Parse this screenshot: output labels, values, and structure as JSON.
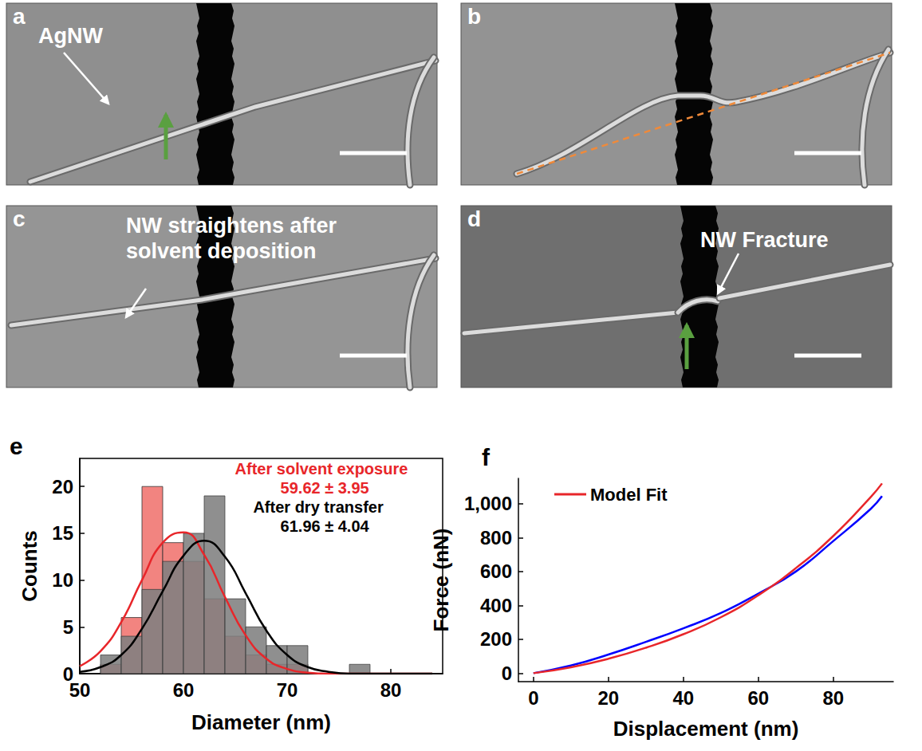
{
  "panels": [
    {
      "letter": "a",
      "label": "AgNW"
    },
    {
      "letter": "b"
    },
    {
      "letter": "c",
      "label": "NW straightens after solvent deposition"
    },
    {
      "letter": "d",
      "label": "NW Fracture"
    },
    {
      "letter": "e"
    },
    {
      "letter": "f"
    }
  ],
  "chart_data": [
    {
      "type": "histogram",
      "xlabel": "Diameter (nm)",
      "ylabel": "Counts",
      "xlim": [
        50,
        85
      ],
      "xticks": [
        50,
        60,
        70,
        80
      ],
      "ylim": [
        0,
        23
      ],
      "yticks": [
        0,
        5,
        10,
        15,
        20
      ],
      "grid": false,
      "bins": [
        52,
        54,
        56,
        58,
        60,
        62,
        64,
        66,
        68,
        70,
        72,
        74,
        76,
        78,
        80
      ],
      "annotations": [
        {
          "text": "After solvent exposure",
          "color": "#e8262a"
        },
        {
          "text": "59.62 ± 3.95",
          "color": "#e8262a"
        },
        {
          "text": "After dry transfer",
          "color": "#000000"
        },
        {
          "text": "61.96 ± 4.04",
          "color": "#000000"
        }
      ],
      "series": [
        {
          "type": "bar",
          "color": "#f28480",
          "values": [
            1,
            6,
            20,
            14,
            12,
            8,
            4,
            2,
            1,
            1,
            0,
            0,
            0,
            0
          ]
        },
        {
          "type": "bar",
          "color": "#7f7f7f",
          "values": [
            2,
            4,
            9,
            12,
            15,
            19,
            8,
            5,
            3,
            3,
            0,
            0,
            1,
            0
          ]
        },
        {
          "type": "line",
          "color": "#e8262a",
          "x": [
            50,
            52,
            54,
            56,
            58,
            60,
            62,
            64,
            66,
            68,
            70,
            72,
            74,
            76,
            78,
            80,
            82,
            84
          ],
          "values": [
            0.8,
            2.4,
            5.5,
            10.0,
            14.0,
            15.1,
            12.7,
            8.2,
            4.1,
            1.6,
            0.5,
            0.1,
            0.0,
            0.0,
            0.0,
            0.0,
            0.0,
            0.0
          ]
        },
        {
          "type": "line",
          "color": "#000000",
          "x": [
            50,
            52,
            54,
            56,
            58,
            60,
            62,
            64,
            66,
            68,
            70,
            72,
            74,
            76,
            78,
            80,
            82,
            84
          ],
          "values": [
            0.2,
            0.7,
            2.0,
            4.8,
            8.8,
            12.6,
            14.2,
            12.5,
            8.6,
            4.6,
            2.0,
            0.7,
            0.2,
            0.0,
            0.0,
            0.0,
            0.0,
            0.0
          ]
        }
      ]
    },
    {
      "type": "line",
      "xlabel": "Displacement (nm)",
      "ylabel": "Force (nN)",
      "xlim": [
        -4,
        96
      ],
      "xticks": [
        0,
        20,
        40,
        60,
        80
      ],
      "ylim": [
        -50,
        1150
      ],
      "yticks": [
        0,
        200,
        400,
        600,
        800,
        1000
      ],
      "grid": false,
      "legend": "upper left",
      "series": [
        {
          "color": "#0000ff",
          "x": [
            0,
            10,
            20,
            30,
            40,
            50,
            60,
            70,
            80,
            90,
            93
          ],
          "values": [
            0,
            45,
            110,
            185,
            265,
            355,
            470,
            600,
            780,
            970,
            1045
          ]
        },
        {
          "name": "Model Fit",
          "color": "#e8262a",
          "x": [
            0,
            10,
            20,
            30,
            40,
            50,
            60,
            70,
            80,
            90,
            93
          ],
          "values": [
            0,
            35,
            85,
            150,
            230,
            330,
            460,
            620,
            810,
            1040,
            1120
          ]
        }
      ]
    }
  ]
}
